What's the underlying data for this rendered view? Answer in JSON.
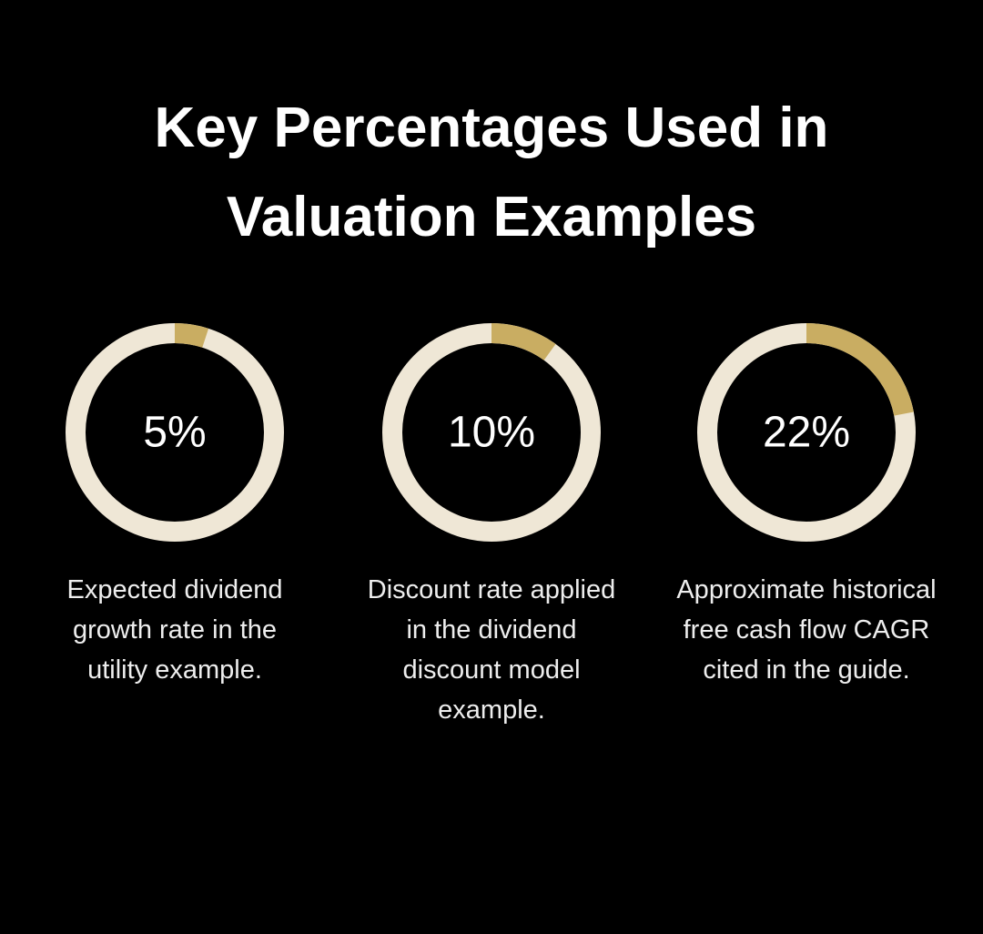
{
  "title": "Key Percentages Used in Valuation Examples",
  "chart_data": [
    {
      "type": "donut",
      "values": [
        5
      ],
      "value_labels": [
        "5%"
      ],
      "ylim": [
        0,
        100
      ],
      "color": "#c9ad62",
      "track_color": "#efe7d6",
      "caption": "Expected dividend growth rate in the utility example."
    },
    {
      "type": "donut",
      "values": [
        10
      ],
      "value_labels": [
        "10%"
      ],
      "ylim": [
        0,
        100
      ],
      "color": "#c9ad62",
      "track_color": "#efe7d6",
      "caption": "Discount rate applied in the dividend discount model example."
    },
    {
      "type": "donut",
      "values": [
        22
      ],
      "value_labels": [
        "22%"
      ],
      "ylim": [
        0,
        100
      ],
      "color": "#c9ad62",
      "track_color": "#efe7d6",
      "caption": "Approximate historical free cash flow CAGR cited in the guide."
    }
  ]
}
